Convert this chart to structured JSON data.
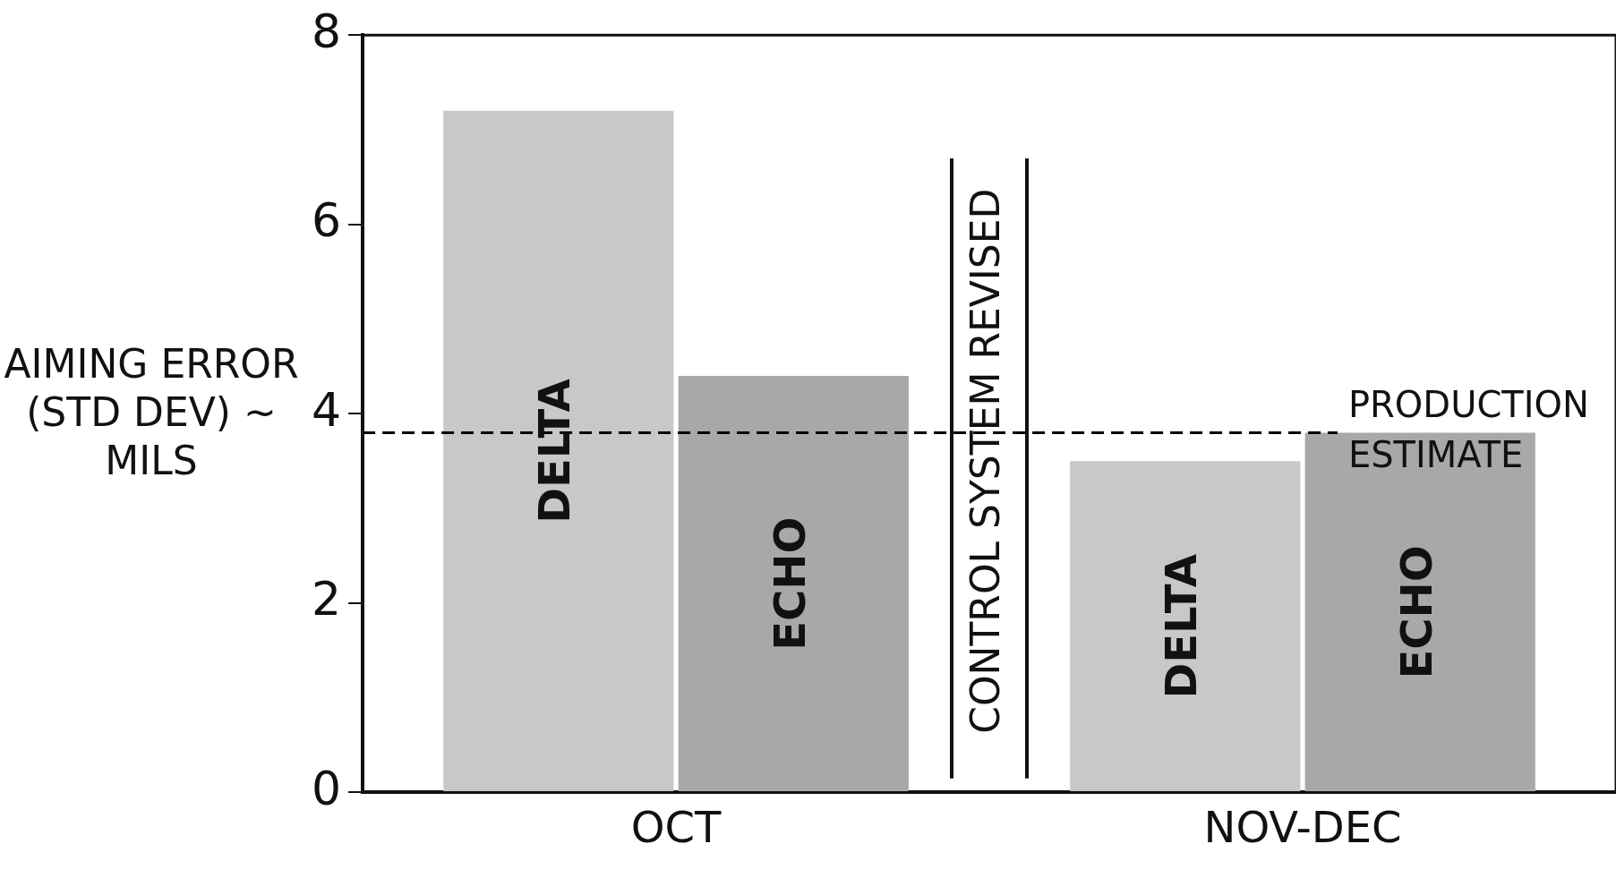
{
  "chart_data": {
    "type": "bar",
    "ylabel": "AIMING ERROR (STD DEV) ~ MILS",
    "categories": [
      "OCT",
      "NOV-DEC"
    ],
    "series": [
      {
        "name": "DELTA",
        "color": "#c8c8c8",
        "values": [
          7.2,
          3.5
        ]
      },
      {
        "name": "ECHO",
        "color": "#a8a8a8",
        "values": [
          4.4,
          3.8
        ]
      }
    ],
    "ylim": [
      0,
      8
    ],
    "yticks": [
      0,
      2,
      4,
      6,
      8
    ],
    "grid": false,
    "legend": false,
    "ref_lines": [
      {
        "axis": "y",
        "value": 3.8,
        "label": "PRODUCTION ESTIMATE",
        "line_style": "dashed",
        "color": "#000000"
      }
    ],
    "annotations": [
      "CONTROL SYSTEM REVISED"
    ]
  }
}
